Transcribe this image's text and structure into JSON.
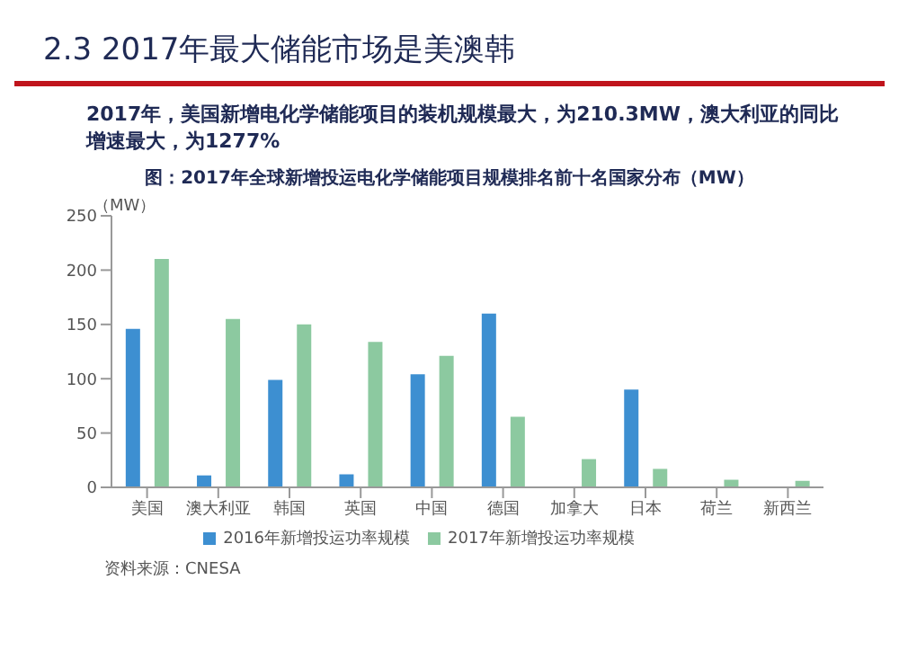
{
  "chart_data": {
    "type": "bar",
    "title": "2.3 2017年最大储能市场是美澳韩",
    "subtitle": "2017年，美国新增电化学储能项目的装机规模最大，为210.3MW，澳大利亚的同比增速最大，为1277%",
    "annotations": [
      "图：2017年全球新增投运电化学储能项目规模排名前十名国家分布（MW）",
      "资料来源：CNESA"
    ],
    "ylabel": "（MW）",
    "categories": [
      "美国",
      "澳大利亚",
      "韩国",
      "英国",
      "中国",
      "德国",
      "加拿大",
      "日本",
      "荷兰",
      "新西兰"
    ],
    "series": [
      {
        "name": "2016年新增投运功率规模",
        "color": "#3d8fd1",
        "values": [
          146,
          11,
          99,
          12,
          104,
          160,
          0,
          90,
          0,
          null
        ]
      },
      {
        "name": "2017年新增投运功率规模",
        "color": "#8cc9a0",
        "values": [
          210.3,
          155,
          150,
          134,
          121,
          65,
          26,
          17,
          7,
          6
        ]
      }
    ],
    "ylim": [
      0,
      250
    ],
    "yticks": [
      0,
      50,
      100,
      150,
      200,
      250
    ],
    "legend": "bottom"
  }
}
